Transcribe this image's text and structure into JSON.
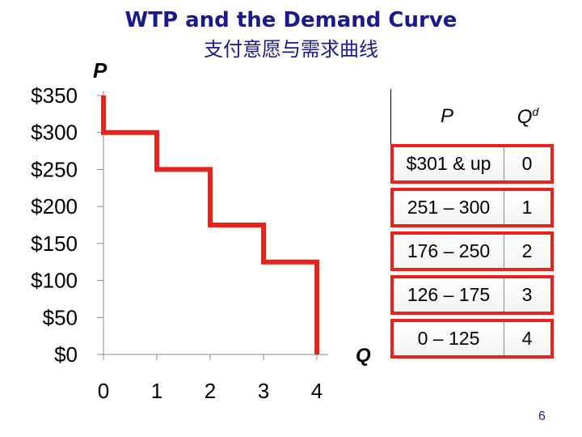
{
  "title": "WTP and the Demand Curve",
  "subtitle": "支付意愿与需求曲线",
  "axis_labels": {
    "p": "P",
    "q": "Q"
  },
  "page_number": "6",
  "colors": {
    "curve": "#e8231c",
    "title": "#1a1a8c"
  },
  "table": {
    "header_p": "P",
    "header_q": "Q",
    "header_q_sup": "d",
    "rows": [
      {
        "price": "$301 & up",
        "qd": "0"
      },
      {
        "price": "251 – 300",
        "qd": "1"
      },
      {
        "price": "176 – 250",
        "qd": "2"
      },
      {
        "price": "126 – 175",
        "qd": "3"
      },
      {
        "price": "0 – 125",
        "qd": "4"
      }
    ]
  },
  "chart_data": {
    "type": "line",
    "step": true,
    "title": "WTP and the Demand Curve",
    "xlabel": "Q",
    "ylabel": "P",
    "xlim": [
      0,
      4
    ],
    "ylim": [
      0,
      350
    ],
    "x_ticks": [
      "0",
      "1",
      "2",
      "3",
      "4"
    ],
    "y_ticks": [
      "$0",
      "$50",
      "$100",
      "$150",
      "$200",
      "$250",
      "$300",
      "$350"
    ],
    "points": [
      {
        "x": 0,
        "y": 350
      },
      {
        "x": 0,
        "y": 300
      },
      {
        "x": 1,
        "y": 300
      },
      {
        "x": 1,
        "y": 250
      },
      {
        "x": 2,
        "y": 250
      },
      {
        "x": 2,
        "y": 175
      },
      {
        "x": 3,
        "y": 175
      },
      {
        "x": 3,
        "y": 125
      },
      {
        "x": 4,
        "y": 125
      },
      {
        "x": 4,
        "y": 0
      }
    ]
  }
}
